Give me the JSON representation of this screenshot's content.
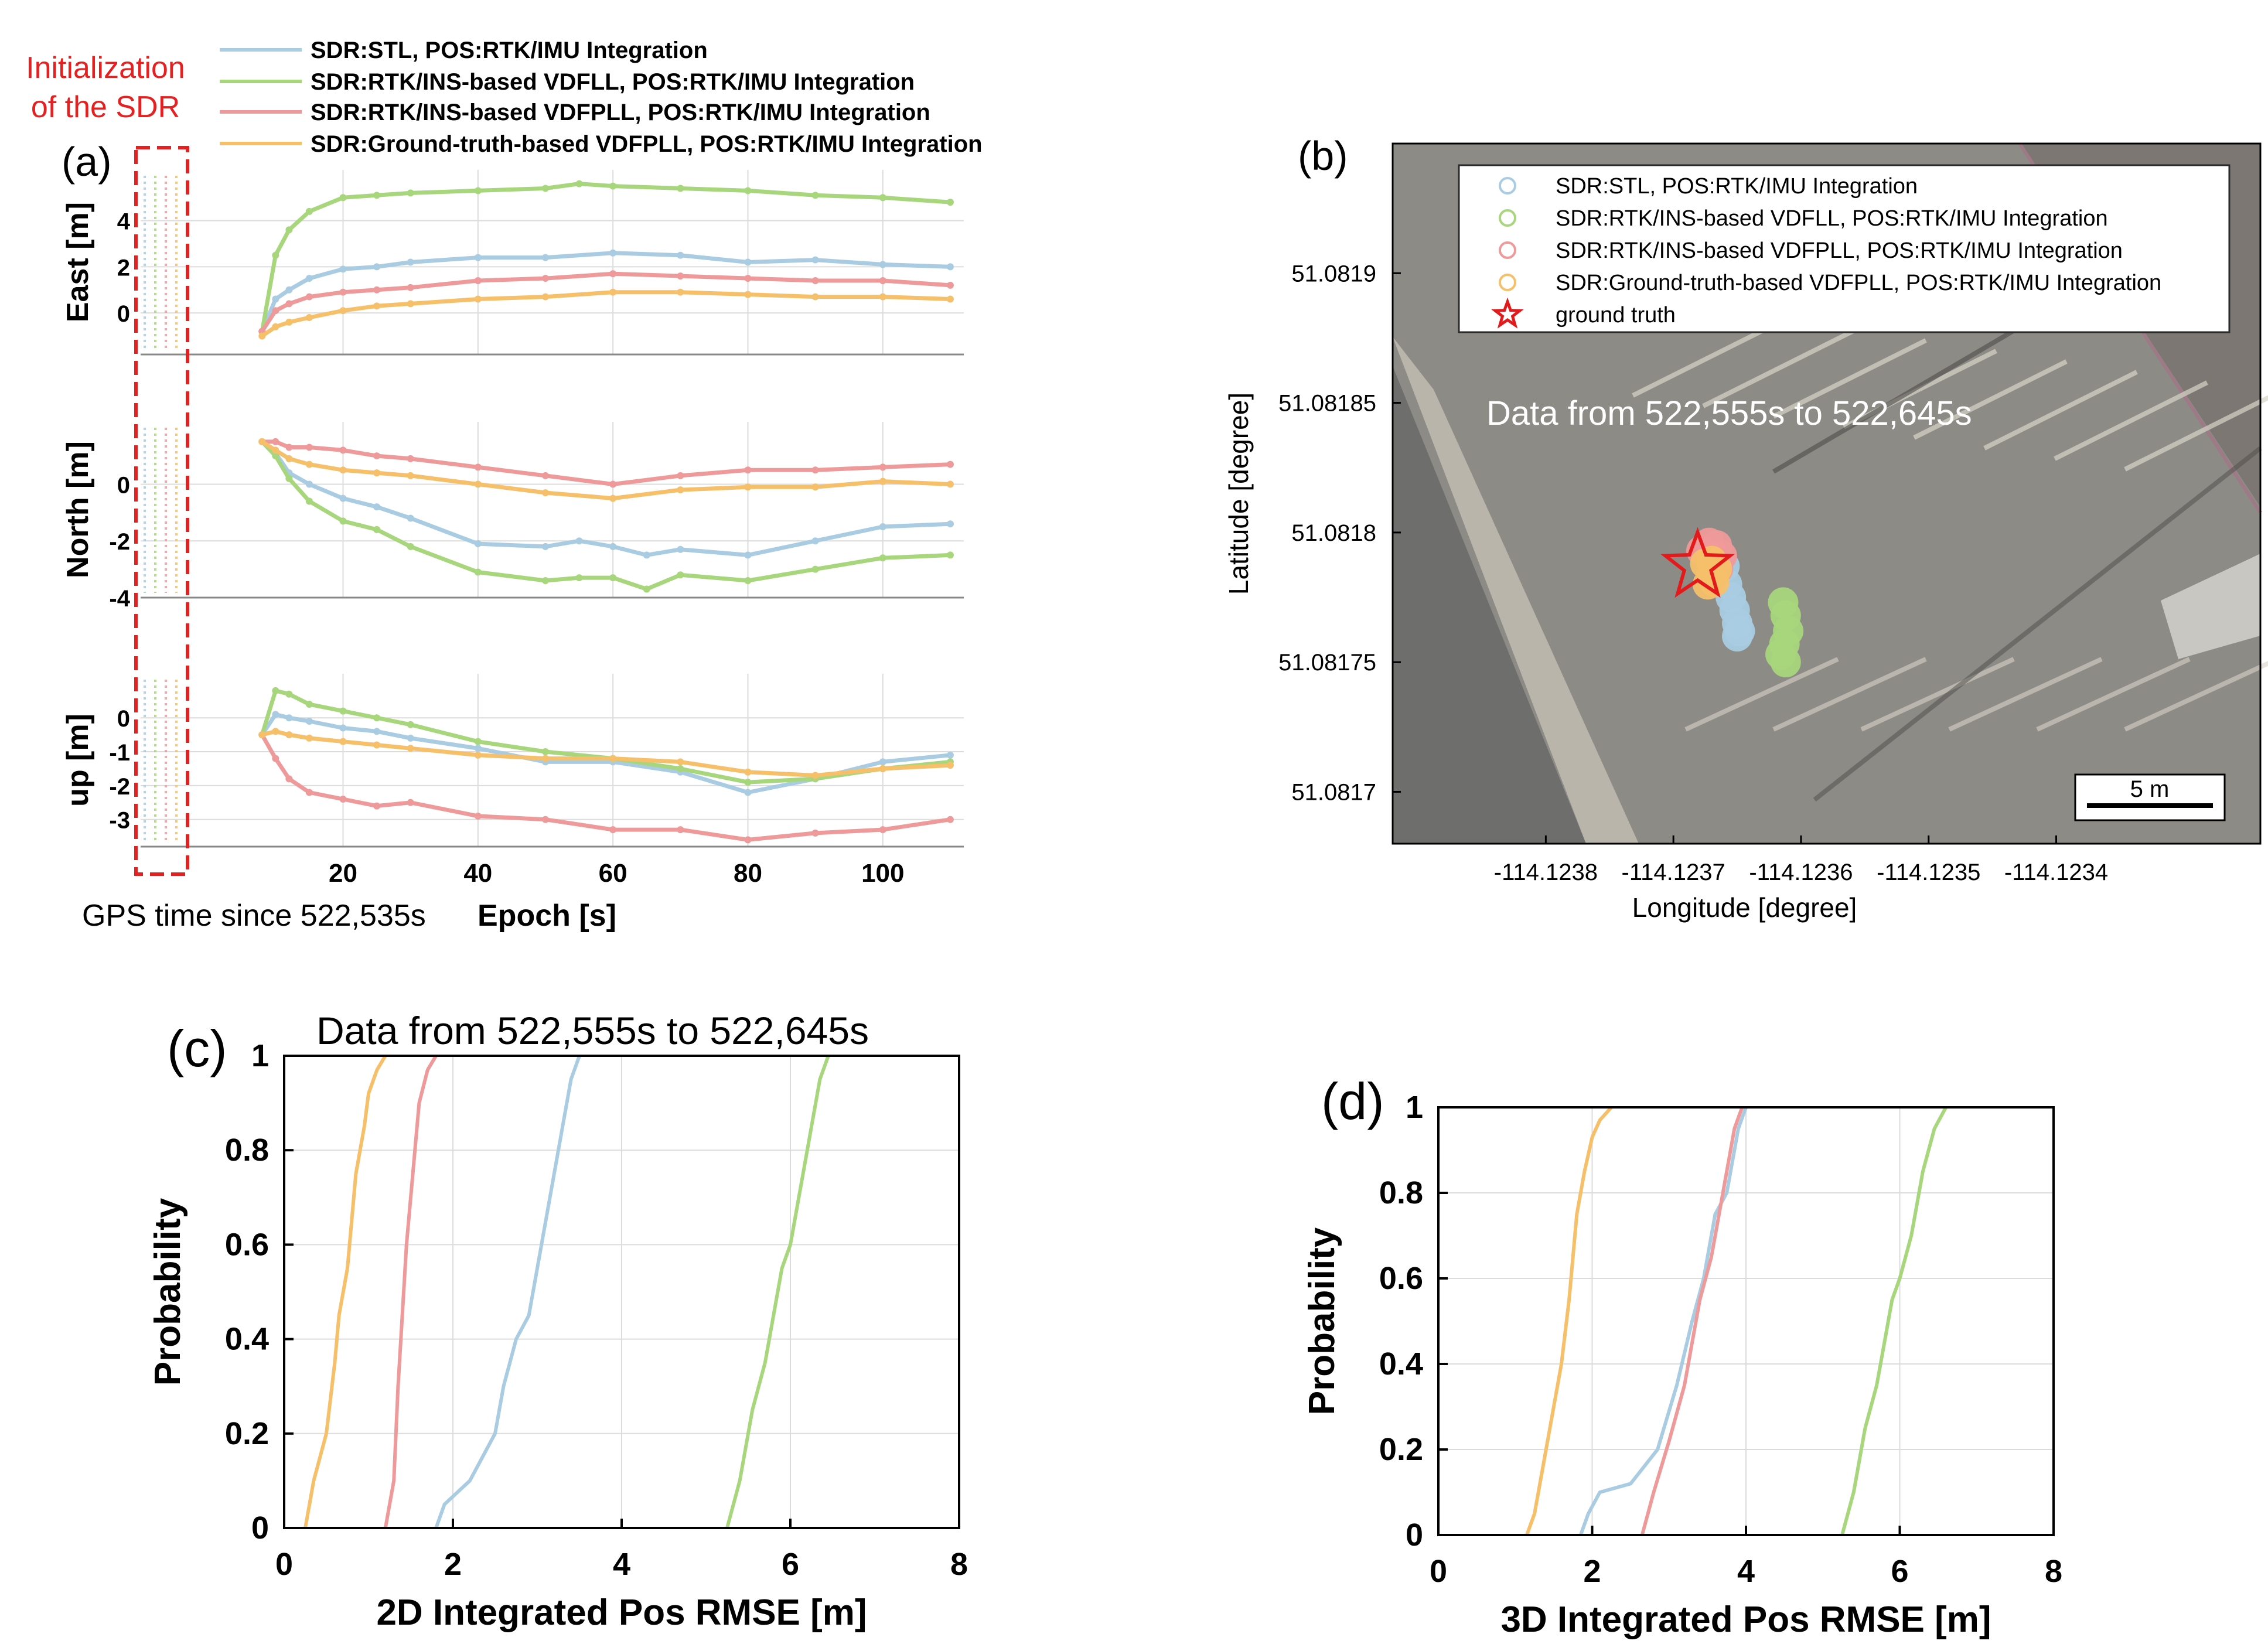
{
  "colors": {
    "stl": "#a9cce3",
    "vdfll": "#a8d67c",
    "vdfpll_rtk": "#ef9a9a",
    "vdfpll_gt": "#f6c06a",
    "init_box": "#e52020",
    "star": "#e31a1c"
  },
  "series_names": [
    "SDR:STL, POS:RTK/IMU Integration",
    "SDR:RTK/INS-based VDFLL, POS:RTK/IMU Integration",
    "SDR:RTK/INS-based VDFPLL, POS:RTK/IMU Integration",
    "SDR:Ground-truth-based VDFPLL, POS:RTK/IMU Integration"
  ],
  "panel_a": {
    "label": "(a)",
    "init_note_line1": "Initialization",
    "init_note_line2": "of the SDR",
    "xlabel_left": "GPS time since 522,535s",
    "xlabel_right": "Epoch [s]"
  },
  "panel_b": {
    "label": "(b)",
    "legend_extra": "ground truth",
    "annotation": "Data from 522,555s to 522,645s",
    "scale_label": "5 m"
  },
  "panel_c": {
    "label": "(c)",
    "title": "Data from 522,555s to 522,645s"
  },
  "panel_d": {
    "label": "(d)"
  },
  "chart_data": [
    {
      "id": "a-east",
      "type": "line",
      "ylabel": "East [m]",
      "xlim": [
        -10,
        112
      ],
      "ylim": [
        -1.8,
        6.2
      ],
      "yticks": [
        0,
        2,
        4
      ],
      "xticks": [
        20,
        40,
        60,
        80,
        100
      ],
      "series": [
        {
          "name": "SDR:STL, POS:RTK/IMU Integration",
          "x": [
            8,
            10,
            12,
            15,
            20,
            25,
            30,
            40,
            50,
            60,
            70,
            80,
            90,
            100,
            110
          ],
          "values": [
            -0.8,
            0.6,
            1.0,
            1.5,
            1.9,
            2.0,
            2.2,
            2.4,
            2.4,
            2.6,
            2.5,
            2.2,
            2.3,
            2.1,
            2.0
          ]
        },
        {
          "name": "SDR:RTK/INS-based VDFLL, POS:RTK/IMU Integration",
          "x": [
            8,
            10,
            12,
            15,
            20,
            25,
            30,
            40,
            50,
            55,
            60,
            70,
            80,
            90,
            100,
            110
          ],
          "values": [
            -0.8,
            2.5,
            3.6,
            4.4,
            5.0,
            5.1,
            5.2,
            5.3,
            5.4,
            5.6,
            5.5,
            5.4,
            5.3,
            5.1,
            5.0,
            4.8
          ]
        },
        {
          "name": "SDR:RTK/INS-based VDFPLL, POS:RTK/IMU Integration",
          "x": [
            8,
            10,
            12,
            15,
            20,
            25,
            30,
            40,
            50,
            60,
            70,
            80,
            90,
            100,
            110
          ],
          "values": [
            -0.8,
            0.1,
            0.4,
            0.7,
            0.9,
            1.0,
            1.1,
            1.4,
            1.5,
            1.7,
            1.6,
            1.5,
            1.4,
            1.4,
            1.2
          ]
        },
        {
          "name": "SDR:Ground-truth-based VDFPLL, POS:RTK/IMU Integration",
          "x": [
            8,
            10,
            12,
            15,
            20,
            25,
            30,
            40,
            50,
            60,
            70,
            80,
            90,
            100,
            110
          ],
          "values": [
            -1.0,
            -0.6,
            -0.4,
            -0.2,
            0.1,
            0.3,
            0.4,
            0.6,
            0.7,
            0.9,
            0.9,
            0.8,
            0.7,
            0.7,
            0.6
          ]
        }
      ]
    },
    {
      "id": "a-north",
      "type": "line",
      "ylabel": "North [m]",
      "xlim": [
        -10,
        112
      ],
      "ylim": [
        -4,
        2.2
      ],
      "yticks": [
        -4,
        -2,
        0
      ],
      "xticks": [
        20,
        40,
        60,
        80,
        100
      ],
      "series": [
        {
          "name": "SDR:STL, POS:RTK/IMU Integration",
          "x": [
            8,
            10,
            12,
            15,
            20,
            25,
            30,
            40,
            50,
            55,
            60,
            65,
            70,
            80,
            90,
            100,
            110
          ],
          "values": [
            1.5,
            1.1,
            0.4,
            0.0,
            -0.5,
            -0.8,
            -1.2,
            -2.1,
            -2.2,
            -2.0,
            -2.2,
            -2.5,
            -2.3,
            -2.5,
            -2.0,
            -1.5,
            -1.4
          ]
        },
        {
          "name": "SDR:RTK/INS-based VDFLL, POS:RTK/IMU Integration",
          "x": [
            8,
            10,
            12,
            15,
            20,
            25,
            30,
            40,
            50,
            55,
            60,
            65,
            70,
            80,
            90,
            100,
            110
          ],
          "values": [
            1.5,
            1.0,
            0.2,
            -0.6,
            -1.3,
            -1.6,
            -2.2,
            -3.1,
            -3.4,
            -3.3,
            -3.3,
            -3.7,
            -3.2,
            -3.4,
            -3.0,
            -2.6,
            -2.5
          ]
        },
        {
          "name": "SDR:RTK/INS-based VDFPLL, POS:RTK/IMU Integration",
          "x": [
            8,
            10,
            12,
            15,
            20,
            25,
            30,
            40,
            50,
            60,
            70,
            80,
            90,
            100,
            110
          ],
          "values": [
            1.5,
            1.5,
            1.3,
            1.3,
            1.2,
            1.0,
            0.9,
            0.6,
            0.3,
            0.0,
            0.3,
            0.5,
            0.5,
            0.6,
            0.7
          ]
        },
        {
          "name": "SDR:Ground-truth-based VDFPLL, POS:RTK/IMU Integration",
          "x": [
            8,
            10,
            12,
            15,
            20,
            25,
            30,
            40,
            50,
            60,
            70,
            80,
            90,
            100,
            110
          ],
          "values": [
            1.5,
            1.2,
            0.9,
            0.7,
            0.5,
            0.4,
            0.3,
            0.0,
            -0.3,
            -0.5,
            -0.2,
            -0.1,
            -0.1,
            0.1,
            0.0
          ]
        }
      ]
    },
    {
      "id": "a-up",
      "type": "line",
      "ylabel": "up [m]",
      "xlim": [
        -10,
        112
      ],
      "ylim": [
        -3.8,
        1.3
      ],
      "yticks": [
        -3,
        -2,
        -1,
        0
      ],
      "xticks": [
        20,
        40,
        60,
        80,
        100
      ],
      "series": [
        {
          "name": "SDR:STL, POS:RTK/IMU Integration",
          "x": [
            8,
            10,
            12,
            15,
            20,
            25,
            30,
            40,
            50,
            60,
            70,
            80,
            90,
            100,
            110
          ],
          "values": [
            -0.5,
            0.1,
            0.0,
            -0.1,
            -0.3,
            -0.4,
            -0.6,
            -0.9,
            -1.3,
            -1.3,
            -1.6,
            -2.2,
            -1.8,
            -1.3,
            -1.1
          ]
        },
        {
          "name": "SDR:RTK/INS-based VDFLL, POS:RTK/IMU Integration",
          "x": [
            8,
            10,
            12,
            15,
            20,
            25,
            30,
            40,
            50,
            60,
            70,
            80,
            90,
            100,
            110
          ],
          "values": [
            -0.5,
            0.8,
            0.7,
            0.4,
            0.2,
            0.0,
            -0.2,
            -0.7,
            -1.0,
            -1.2,
            -1.5,
            -1.9,
            -1.8,
            -1.5,
            -1.3
          ]
        },
        {
          "name": "SDR:RTK/INS-based VDFPLL, POS:RTK/IMU Integration",
          "x": [
            8,
            10,
            12,
            15,
            20,
            25,
            30,
            40,
            50,
            60,
            70,
            80,
            90,
            100,
            110
          ],
          "values": [
            -0.5,
            -1.2,
            -1.8,
            -2.2,
            -2.4,
            -2.6,
            -2.5,
            -2.9,
            -3.0,
            -3.3,
            -3.3,
            -3.6,
            -3.4,
            -3.3,
            -3.0
          ]
        },
        {
          "name": "SDR:Ground-truth-based VDFPLL, POS:RTK/IMU Integration",
          "x": [
            8,
            10,
            12,
            15,
            20,
            25,
            30,
            40,
            50,
            60,
            70,
            80,
            90,
            100,
            110
          ],
          "values": [
            -0.5,
            -0.4,
            -0.5,
            -0.6,
            -0.7,
            -0.8,
            -0.9,
            -1.1,
            -1.2,
            -1.2,
            -1.3,
            -1.6,
            -1.7,
            -1.5,
            -1.4
          ]
        }
      ]
    },
    {
      "id": "b-map",
      "type": "scatter",
      "xlabel": "Longitude [degree]",
      "ylabel": "Latitude [degree]",
      "xlim": [
        -114.12392,
        -114.12324
      ],
      "ylim": [
        51.08168,
        51.08195
      ],
      "xticks": [
        -114.1238,
        -114.1237,
        -114.1236,
        -114.1235,
        -114.1234
      ],
      "yticks": [
        51.0817,
        51.08175,
        51.0818,
        51.08185,
        51.0819
      ],
      "xtick_labels": [
        "-114.1238",
        "-114.1237",
        "-114.1236",
        "-114.1235",
        "-114.1234"
      ],
      "ytick_labels": [
        "51.0817",
        "51.08175",
        "51.0818",
        "51.08185",
        "51.0819"
      ],
      "series": [
        {
          "name": "SDR:STL, POS:RTK/IMU Integration",
          "x": [
            -114.12366,
            -114.123658,
            -114.123655,
            -114.123652,
            -114.12365,
            -114.123648,
            -114.12365
          ],
          "y": [
            51.081787,
            51.08178,
            51.081775,
            51.08177,
            51.081765,
            51.081762,
            51.08176
          ]
        },
        {
          "name": "SDR:RTK/INS-based VDFLL, POS:RTK/IMU Integration",
          "x": [
            -114.123614,
            -114.123612,
            -114.12361,
            -114.123613,
            -114.123616,
            -114.123612
          ],
          "y": [
            51.081773,
            51.081768,
            51.081762,
            51.081757,
            51.081753,
            51.08175
          ]
        },
        {
          "name": "SDR:RTK/INS-based VDFPLL, POS:RTK/IMU Integration",
          "x": [
            -114.123678,
            -114.123672,
            -114.123666,
            -114.123662,
            -114.123665,
            -114.12367
          ],
          "y": [
            51.081793,
            51.081796,
            51.081795,
            51.081791,
            51.081786,
            51.081784
          ]
        },
        {
          "name": "SDR:Ground-truth-based VDFPLL, POS:RTK/IMU Integration",
          "x": [
            -114.123675,
            -114.12367,
            -114.123666,
            -114.123668,
            -114.123673
          ],
          "y": [
            51.081788,
            51.081789,
            51.081786,
            51.081781,
            51.08178
          ]
        },
        {
          "name": "ground truth",
          "x": [
            -114.123681
          ],
          "y": [
            51.081787
          ]
        }
      ]
    },
    {
      "id": "c-cdf",
      "type": "line",
      "xlabel": "2D Integrated Pos RMSE [m]",
      "ylabel": "Probability",
      "xlim": [
        0,
        8
      ],
      "ylim": [
        0,
        1
      ],
      "xticks": [
        0,
        2,
        4,
        6,
        8
      ],
      "yticks": [
        0,
        0.2,
        0.4,
        0.6,
        0.8,
        1
      ],
      "xtick_labels": [
        "0",
        "2",
        "4",
        "6",
        "8"
      ],
      "ytick_labels": [
        "0",
        "0.2",
        "0.4",
        "0.6",
        "0.8",
        "1"
      ],
      "series": [
        {
          "name": "SDR:STL, POS:RTK/IMU Integration",
          "x": [
            1.8,
            1.9,
            2.2,
            2.5,
            2.6,
            2.75,
            2.9,
            3.05,
            3.2,
            3.3,
            3.4,
            3.5
          ],
          "values": [
            0,
            0.05,
            0.1,
            0.2,
            0.3,
            0.4,
            0.45,
            0.6,
            0.75,
            0.85,
            0.95,
            1
          ]
        },
        {
          "name": "SDR:RTK/INS-based VDFLL, POS:RTK/IMU Integration",
          "x": [
            5.25,
            5.4,
            5.55,
            5.7,
            5.8,
            5.9,
            6.0,
            6.1,
            6.25,
            6.35,
            6.45
          ],
          "values": [
            0,
            0.1,
            0.25,
            0.35,
            0.45,
            0.55,
            0.6,
            0.7,
            0.85,
            0.95,
            1
          ]
        },
        {
          "name": "SDR:RTK/INS-based VDFPLL, POS:RTK/IMU Integration",
          "x": [
            1.2,
            1.3,
            1.35,
            1.4,
            1.45,
            1.5,
            1.55,
            1.6,
            1.7,
            1.8
          ],
          "values": [
            0,
            0.1,
            0.3,
            0.45,
            0.6,
            0.7,
            0.8,
            0.9,
            0.97,
            1
          ]
        },
        {
          "name": "SDR:Ground-truth-based VDFPLL, POS:RTK/IMU Integration",
          "x": [
            0.25,
            0.35,
            0.5,
            0.6,
            0.65,
            0.75,
            0.8,
            0.85,
            0.95,
            1.0,
            1.1,
            1.2
          ],
          "values": [
            0,
            0.1,
            0.2,
            0.35,
            0.45,
            0.55,
            0.65,
            0.75,
            0.85,
            0.92,
            0.97,
            1
          ]
        }
      ]
    },
    {
      "id": "d-cdf",
      "type": "line",
      "xlabel": "3D Integrated Pos RMSE [m]",
      "ylabel": "Probability",
      "xlim": [
        0,
        8
      ],
      "ylim": [
        0,
        1
      ],
      "xticks": [
        0,
        2,
        4,
        6,
        8
      ],
      "yticks": [
        0,
        0.2,
        0.4,
        0.6,
        0.8,
        1
      ],
      "xtick_labels": [
        "0",
        "2",
        "4",
        "6",
        "8"
      ],
      "ytick_labels": [
        "0",
        "0.2",
        "0.4",
        "0.6",
        "0.8",
        "1"
      ],
      "series": [
        {
          "name": "SDR:STL, POS:RTK/IMU Integration",
          "x": [
            1.85,
            1.95,
            2.1,
            2.5,
            2.85,
            3.1,
            3.3,
            3.45,
            3.6,
            3.75,
            3.9,
            4.0
          ],
          "values": [
            0,
            0.05,
            0.1,
            0.12,
            0.2,
            0.35,
            0.5,
            0.6,
            0.75,
            0.8,
            0.95,
            1
          ]
        },
        {
          "name": "SDR:RTK/INS-based VDFLL, POS:RTK/IMU Integration",
          "x": [
            5.25,
            5.4,
            5.55,
            5.7,
            5.8,
            5.9,
            6.0,
            6.15,
            6.3,
            6.45,
            6.6
          ],
          "values": [
            0,
            0.1,
            0.25,
            0.35,
            0.45,
            0.55,
            0.6,
            0.7,
            0.85,
            0.95,
            1
          ]
        },
        {
          "name": "SDR:RTK/INS-based VDFPLL, POS:RTK/IMU Integration",
          "x": [
            2.65,
            2.8,
            3.0,
            3.2,
            3.3,
            3.4,
            3.55,
            3.65,
            3.75,
            3.85,
            3.95
          ],
          "values": [
            0,
            0.1,
            0.22,
            0.35,
            0.45,
            0.55,
            0.65,
            0.75,
            0.85,
            0.95,
            1
          ]
        },
        {
          "name": "SDR:Ground-truth-based VDFPLL, POS:RTK/IMU Integration",
          "x": [
            1.15,
            1.25,
            1.4,
            1.5,
            1.6,
            1.7,
            1.75,
            1.8,
            1.9,
            2.0,
            2.1,
            2.25
          ],
          "values": [
            0,
            0.05,
            0.2,
            0.3,
            0.4,
            0.55,
            0.65,
            0.75,
            0.85,
            0.93,
            0.97,
            1
          ]
        }
      ]
    }
  ]
}
